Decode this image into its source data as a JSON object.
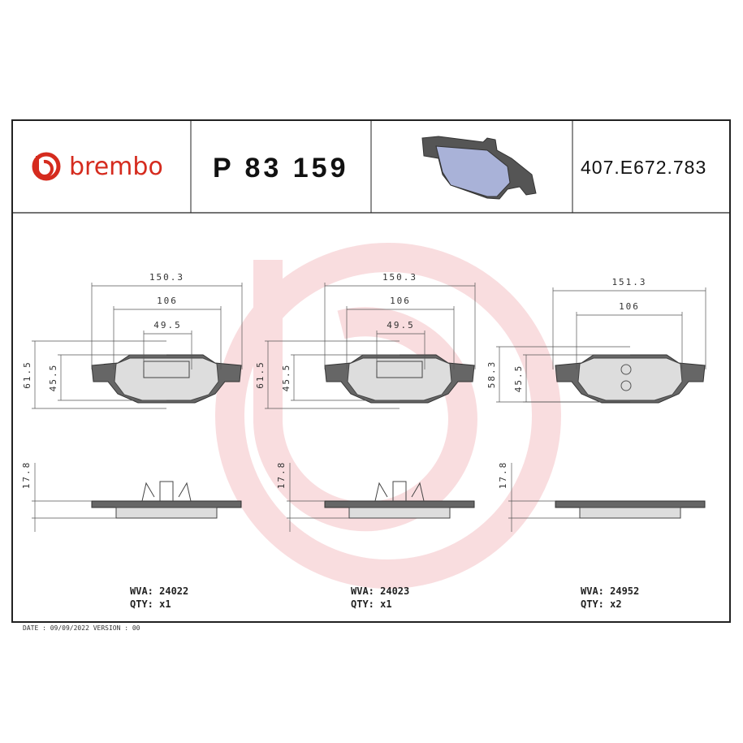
{
  "header": {
    "brand": "brembo",
    "part_number": "P 83 159",
    "code": "407.E672.783"
  },
  "pads": [
    {
      "horizontal_dims": [
        "150.3",
        "106",
        "49.5"
      ],
      "vertical_dims": [
        "61.5",
        "45.5"
      ],
      "thickness": "17.8",
      "wva": "WVA: 24022",
      "qty": "QTY: x1"
    },
    {
      "horizontal_dims": [
        "150.3",
        "106",
        "49.5"
      ],
      "vertical_dims": [
        "61.5",
        "45.5"
      ],
      "thickness": "17.8",
      "wva": "WVA: 24023",
      "qty": "QTY: x1"
    },
    {
      "horizontal_dims": [
        "151.3",
        "106"
      ],
      "vertical_dims": [
        "58.3",
        "45.5"
      ],
      "thickness": "17.8",
      "wva": "WVA: 24952",
      "qty": "QTY: x2"
    }
  ],
  "footer": "DATE : 09/09/2022 VERSION : 00"
}
